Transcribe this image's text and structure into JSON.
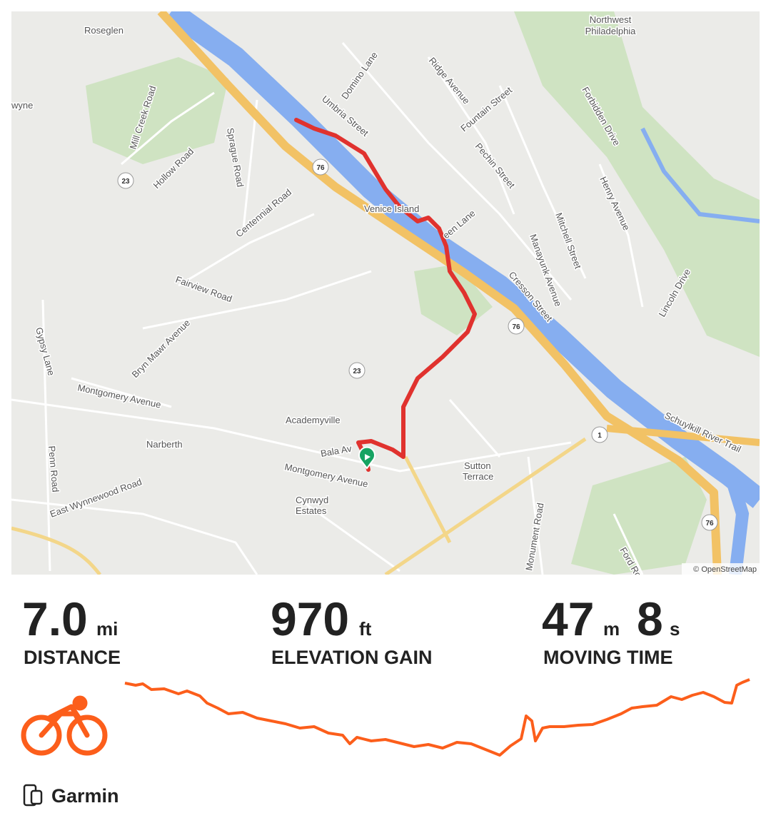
{
  "map": {
    "labels": [
      "Roseglen",
      "Northwest",
      "Philadelphia",
      "wyne",
      "Mill Creek Road",
      "Hollow Road",
      "Sprague Road",
      "Domino Lane",
      "Umbria Street",
      "Ridge Avenue",
      "Fountain Street",
      "Pechin Street",
      "Forbidden Drive",
      "Henry Avenue",
      "Venice Island",
      "een Lane",
      "Centennial Road",
      "Fairview Road",
      "Manayunk Avenue",
      "Mitchell Street",
      "Cresson Street",
      "Lincoln Drive",
      "Bryn Mawr Avenue",
      "Gypsy Lane",
      "Montgomery Avenue",
      "Academyville",
      "Narberth",
      "Bala Av",
      "Montgomery Avenue",
      "Sutton",
      "Terrace",
      "Cynwyd",
      "Estates",
      "Schuylkill River Trail",
      "Penn Road",
      "East Wynnewood Road",
      "Monument Road",
      "Ford Ro"
    ],
    "shields": [
      "76",
      "23",
      "23",
      "76",
      "1",
      "76"
    ],
    "attribution": "© OpenStreetMap"
  },
  "stats": {
    "distance": {
      "value": "7.0",
      "unit": "mi",
      "label": "DISTANCE"
    },
    "elevation_gain": {
      "value": "970",
      "unit": "ft",
      "label": "ELEVATION GAIN"
    },
    "moving_time": {
      "minutes": "47",
      "minutes_unit": "m",
      "seconds": "8",
      "seconds_unit": "s",
      "label": "MOVING TIME"
    }
  },
  "device": "Garmin"
}
